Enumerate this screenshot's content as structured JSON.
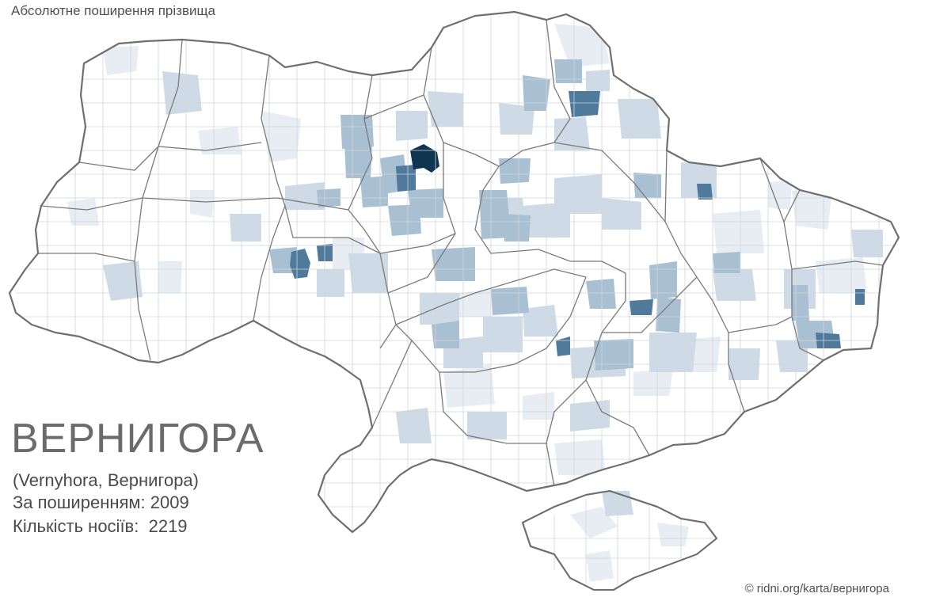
{
  "title": "Абсолютне поширення прізвища",
  "surname": "ВЕРНИГОРА",
  "transliteration": "(Vernyhora, Вернигора)",
  "rank_label": "За поширенням:",
  "rank_value": "2009",
  "count_label": "Кількість носіїв:",
  "count_value": "2219",
  "credit": "© ridni.org/karta/вернигора",
  "colors": {
    "border": "#6f6f6f",
    "district_line": "#cfd6dc",
    "base_fill": "#ffffff",
    "very_light": "#e7edf2",
    "light": "#cedbe6",
    "medium": "#a9c0d3",
    "medium_dark": "#7f9fba",
    "dark": "#4f7a9c",
    "darkest": "#0f3550"
  },
  "hotspots": [
    {
      "level": "darkest",
      "region": "Київ"
    },
    {
      "level": "dark",
      "region": "Хмельницька"
    },
    {
      "level": "dark",
      "region": "Харківська"
    },
    {
      "level": "dark",
      "region": "Полтавська"
    },
    {
      "level": "dark",
      "region": "Дніпропетровська"
    },
    {
      "level": "dark",
      "region": "Сумська"
    }
  ]
}
